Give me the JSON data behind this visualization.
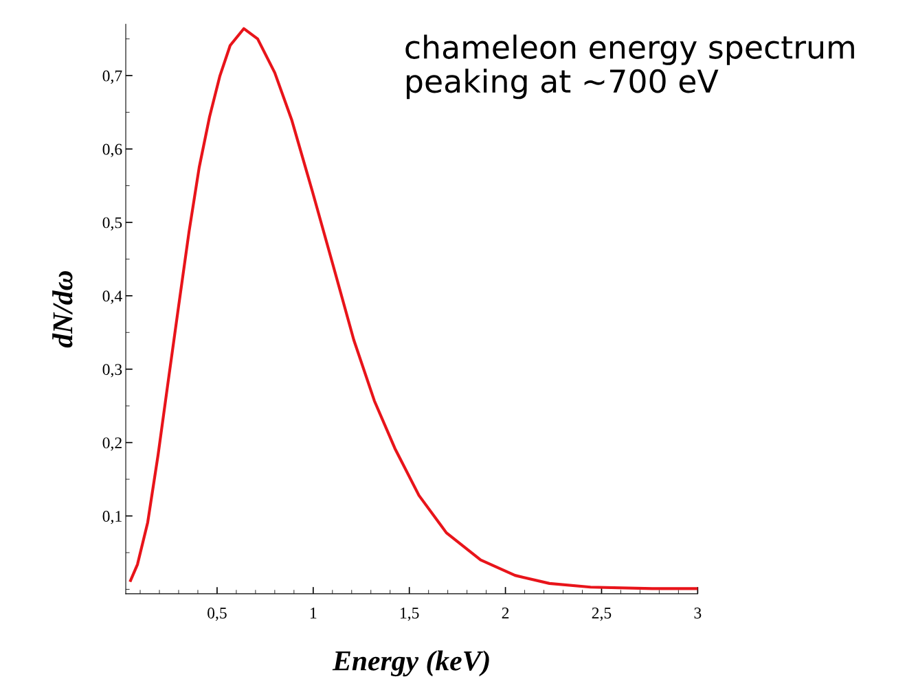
{
  "chart_data": {
    "type": "line",
    "xlabel": "Energy (keV)",
    "ylabel": "dN/dω",
    "annotations": [
      "chameleon energy spectrum\npeaking at ~700 eV"
    ],
    "x": [
      0.05,
      0.086,
      0.139,
      0.193,
      0.246,
      0.3,
      0.354,
      0.407,
      0.461,
      0.514,
      0.568,
      0.639,
      0.711,
      0.8,
      0.889,
      0.996,
      1.104,
      1.211,
      1.318,
      1.425,
      1.55,
      1.693,
      1.871,
      2.05,
      2.229,
      2.443,
      2.764,
      3.0
    ],
    "series": [
      {
        "color": "#e8141a",
        "values": [
          0.012,
          0.034,
          0.091,
          0.183,
          0.284,
          0.386,
          0.487,
          0.575,
          0.644,
          0.699,
          0.741,
          0.764,
          0.75,
          0.704,
          0.639,
          0.542,
          0.441,
          0.34,
          0.257,
          0.192,
          0.128,
          0.077,
          0.04,
          0.019,
          0.008,
          0.003,
          0.001,
          0.001
        ]
      }
    ],
    "xlim": [
      0.025,
      3.0
    ],
    "ylim": [
      -0.006,
      0.77
    ],
    "xticks": [
      {
        "value": 0.5,
        "label": "0,5"
      },
      1,
      {
        "value": 1.5,
        "label": "1,5"
      },
      2,
      {
        "value": 2.5,
        "label": "2,5"
      },
      3
    ],
    "yticks": [
      {
        "value": 0.1,
        "label": "0,1"
      },
      {
        "value": 0.2,
        "label": "0,2"
      },
      {
        "value": 0.3,
        "label": "0,3"
      },
      {
        "value": 0.4,
        "label": "0,4"
      },
      {
        "value": 0.5,
        "label": "0,5"
      },
      {
        "value": 0.6,
        "label": "0,6"
      },
      {
        "value": 0.7,
        "label": "0,7"
      }
    ],
    "grid": false,
    "legend": false,
    "marker": "none",
    "line_style": "solid"
  }
}
